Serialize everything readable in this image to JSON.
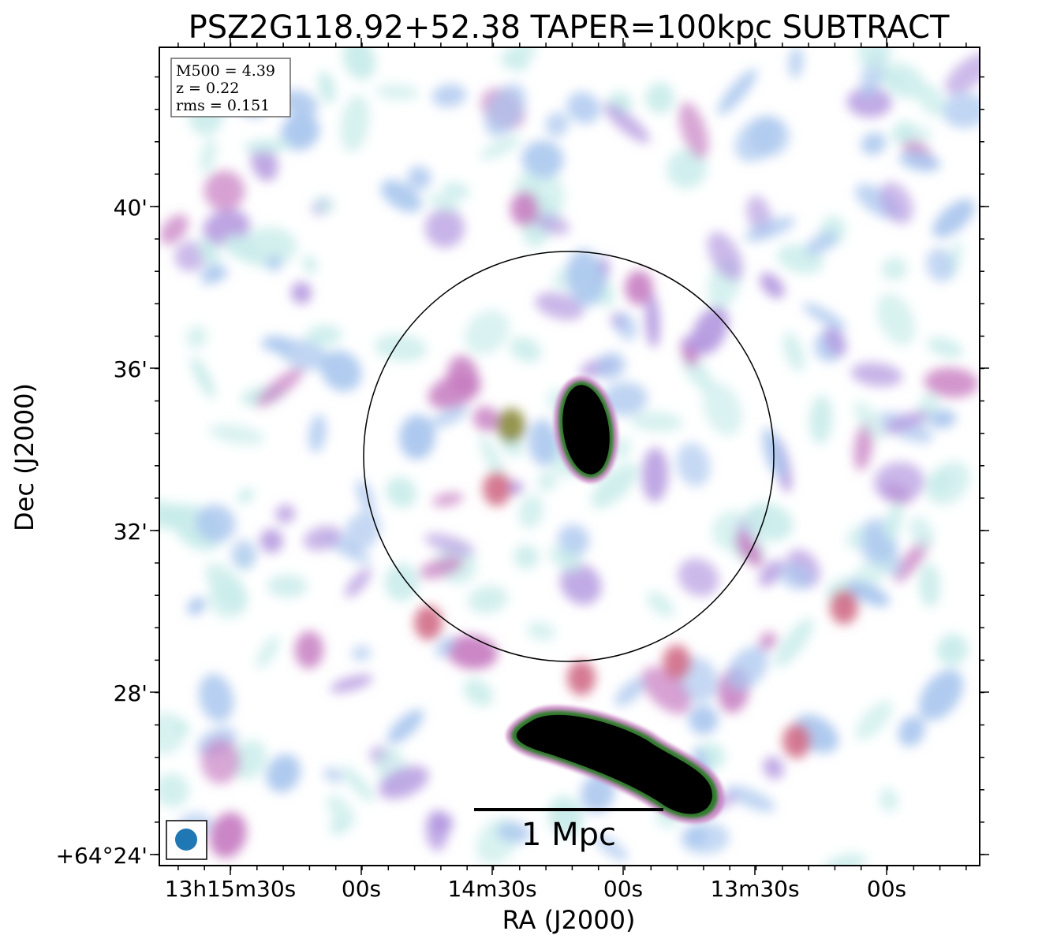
{
  "chart_data": {
    "type": "heatmap",
    "title": "PSZ2G118.92+52.38 TAPER=100kpc SUBTRACT",
    "xlabel": "RA (J2000)",
    "ylabel": "Dec (J2000)",
    "x_ticks": [
      "13h15m30s",
      "00s",
      "14m30s",
      "00s",
      "13m30s",
      "00s"
    ],
    "y_ticks": [
      "+64°24'",
      "28'",
      "32'",
      "36'",
      "40'"
    ],
    "info_box": [
      "M500 = 4.39",
      "z = 0.22",
      "rms = 0.151"
    ],
    "scalebar_label": "1 Mpc",
    "colormap": [
      "#ffffff",
      "#c8ecea",
      "#a9c6ee",
      "#b59ae0",
      "#c77ec2",
      "#d06b86",
      "#8a8a3a",
      "#2f7a2a",
      "#000000"
    ],
    "beam_color": "#1f77b4",
    "circle_color": "#000000"
  }
}
